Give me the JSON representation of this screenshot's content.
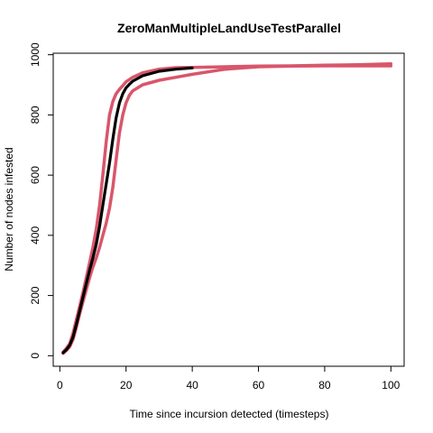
{
  "chart_data": {
    "type": "line",
    "title": "ZeroManMultipleLandUseTestParallel",
    "xlabel": "Time since incursion detected (timesteps)",
    "ylabel": "Number of nodes infested",
    "xlim": [
      -2,
      104
    ],
    "ylim": [
      -35,
      1005
    ],
    "x_ticks": [
      0,
      20,
      40,
      60,
      80,
      100
    ],
    "y_ticks": [
      0,
      200,
      400,
      600,
      800,
      1000
    ],
    "grid": false,
    "legend": "none",
    "series": [
      {
        "color": "#d9566b",
        "points": [
          [
            1,
            12
          ],
          [
            2,
            25
          ],
          [
            3,
            40
          ],
          [
            4,
            75
          ],
          [
            5,
            120
          ],
          [
            6,
            165
          ],
          [
            7,
            210
          ],
          [
            8,
            260
          ],
          [
            9,
            310
          ],
          [
            10,
            360
          ],
          [
            11,
            420
          ],
          [
            12,
            500
          ],
          [
            13,
            600
          ],
          [
            14,
            710
          ],
          [
            15,
            800
          ],
          [
            16,
            845
          ],
          [
            17,
            870
          ],
          [
            18,
            885
          ],
          [
            19,
            897
          ],
          [
            20,
            910
          ],
          [
            22,
            925
          ],
          [
            25,
            940
          ],
          [
            30,
            952
          ],
          [
            35,
            957
          ],
          [
            40,
            958
          ],
          [
            50,
            960
          ],
          [
            60,
            962
          ],
          [
            70,
            963
          ],
          [
            80,
            965
          ],
          [
            90,
            967
          ],
          [
            100,
            970
          ]
        ]
      },
      {
        "color": "#d9566b",
        "points": [
          [
            1,
            8
          ],
          [
            2,
            18
          ],
          [
            3,
            30
          ],
          [
            4,
            55
          ],
          [
            5,
            95
          ],
          [
            6,
            140
          ],
          [
            7,
            180
          ],
          [
            8,
            220
          ],
          [
            9,
            260
          ],
          [
            10,
            295
          ],
          [
            11,
            325
          ],
          [
            12,
            360
          ],
          [
            13,
            400
          ],
          [
            14,
            440
          ],
          [
            15,
            490
          ],
          [
            16,
            560
          ],
          [
            17,
            650
          ],
          [
            18,
            740
          ],
          [
            19,
            800
          ],
          [
            20,
            840
          ],
          [
            21,
            865
          ],
          [
            22,
            880
          ],
          [
            25,
            900
          ],
          [
            30,
            915
          ],
          [
            35,
            925
          ],
          [
            40,
            935
          ],
          [
            50,
            952
          ],
          [
            60,
            960
          ],
          [
            70,
            962
          ],
          [
            80,
            963
          ],
          [
            90,
            963
          ],
          [
            100,
            963
          ]
        ]
      },
      {
        "color": "#000000",
        "points": [
          [
            1,
            10
          ],
          [
            2,
            20
          ],
          [
            3,
            35
          ],
          [
            4,
            62
          ],
          [
            5,
            105
          ],
          [
            6,
            150
          ],
          [
            7,
            195
          ],
          [
            8,
            240
          ],
          [
            9,
            285
          ],
          [
            10,
            325
          ],
          [
            11,
            370
          ],
          [
            12,
            430
          ],
          [
            13,
            500
          ],
          [
            14,
            570
          ],
          [
            15,
            640
          ],
          [
            16,
            720
          ],
          [
            17,
            790
          ],
          [
            18,
            840
          ],
          [
            19,
            870
          ],
          [
            20,
            890
          ],
          [
            21,
            902
          ],
          [
            22,
            912
          ],
          [
            25,
            930
          ],
          [
            30,
            945
          ],
          [
            35,
            952
          ],
          [
            40,
            956
          ]
        ]
      }
    ]
  }
}
